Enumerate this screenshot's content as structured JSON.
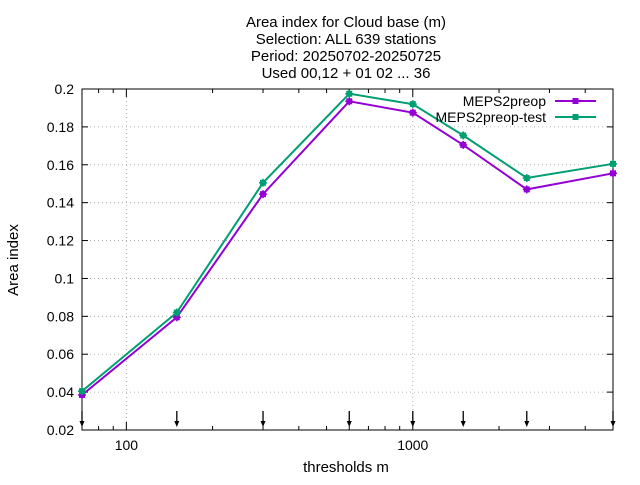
{
  "chart_data": {
    "type": "line",
    "title_lines": [
      "Area index  for Cloud base (m)",
      "Selection: ALL    639 stations",
      "Period: 20250702-20250725",
      "Used 00,12 + 01 02 ... 36"
    ],
    "xlabel": "thresholds m",
    "ylabel": "Area index",
    "x_scale": "log",
    "xlim": [
      70,
      5000
    ],
    "ylim": [
      0.02,
      0.2
    ],
    "x_ticks": [
      100,
      1000
    ],
    "x_tick_labels": [
      "100",
      "1000"
    ],
    "y_ticks": [
      0.02,
      0.04,
      0.06,
      0.08,
      0.1,
      0.12,
      0.14,
      0.16,
      0.18,
      0.2
    ],
    "y_tick_labels": [
      "0.02",
      "0.04",
      "0.06",
      "0.08",
      "0.1",
      "0.12",
      "0.14",
      "0.16",
      "0.18",
      "0.2"
    ],
    "grid": true,
    "legend_position": "top-right",
    "x": [
      70,
      150,
      300,
      600,
      1000,
      1500,
      2500,
      5000
    ],
    "series": [
      {
        "name": "MEPS2preop",
        "color": "#9400d3",
        "values": [
          0.0385,
          0.0795,
          0.1445,
          0.1935,
          0.1875,
          0.1705,
          0.147,
          0.1555
        ]
      },
      {
        "name": "MEPS2preop-test",
        "color": "#009e73",
        "values": [
          0.0405,
          0.082,
          0.1505,
          0.1975,
          0.192,
          0.1755,
          0.153,
          0.1605
        ]
      }
    ],
    "bottom_markers_x": [
      70,
      150,
      300,
      600,
      1000,
      1500,
      2500,
      5000
    ]
  }
}
